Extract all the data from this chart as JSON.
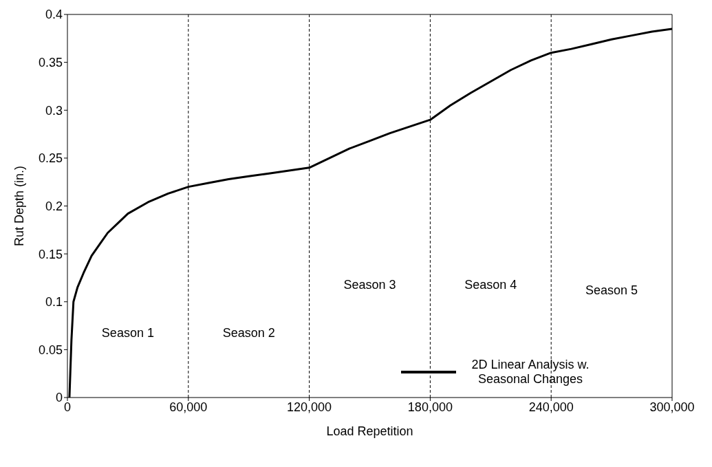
{
  "chart_data": {
    "type": "line",
    "xlabel": "Load Repetition",
    "ylabel": "Rut Depth (in.)",
    "x": [
      1000,
      2000,
      3000,
      5000,
      8000,
      12000,
      16000,
      20000,
      25000,
      30000,
      40000,
      50000,
      60000,
      70000,
      80000,
      90000,
      100000,
      110000,
      120000,
      130000,
      140000,
      150000,
      160000,
      170000,
      180000,
      190000,
      200000,
      210000,
      220000,
      230000,
      240000,
      250000,
      260000,
      270000,
      280000,
      290000,
      300000
    ],
    "series": [
      {
        "name": "2D Linear Analysis w. Seasonal Changes",
        "color": "#000000",
        "values": [
          0,
          0.06,
          0.1,
          0.115,
          0.13,
          0.148,
          0.16,
          0.172,
          0.182,
          0.192,
          0.204,
          0.213,
          0.22,
          0.224,
          0.228,
          0.231,
          0.234,
          0.237,
          0.24,
          0.25,
          0.26,
          0.268,
          0.276,
          0.283,
          0.29,
          0.305,
          0.318,
          0.33,
          0.342,
          0.352,
          0.36,
          0.364,
          0.369,
          0.374,
          0.378,
          0.382,
          0.385
        ]
      }
    ],
    "xlim": [
      0,
      300000
    ],
    "xticks": [
      0,
      {
        "value": 60000,
        "label": "60,000"
      },
      {
        "value": 120000,
        "label": "120,000"
      },
      {
        "value": 180000,
        "label": "180,000"
      },
      {
        "value": 240000,
        "label": "240,000"
      },
      {
        "value": 300000,
        "label": "300,000"
      }
    ],
    "ylim": [
      0,
      0.4
    ],
    "yticks": [
      0,
      0.05,
      0.1,
      0.15,
      0.2,
      0.25,
      0.3,
      0.35,
      0.4
    ],
    "ref_lines": [
      {
        "axis": "x",
        "value": 60000,
        "line_style": "dashed",
        "color": "#000000"
      },
      {
        "axis": "x",
        "value": 120000,
        "line_style": "dashed",
        "color": "#000000"
      },
      {
        "axis": "x",
        "value": 180000,
        "line_style": "dashed",
        "color": "#000000"
      },
      {
        "axis": "x",
        "value": 240000,
        "line_style": "dashed",
        "color": "#000000"
      }
    ],
    "annotations": [
      "Season 1",
      "Season 2",
      "Season 3",
      "Season 4",
      "Season 5"
    ],
    "legend": "bottom right",
    "grid": false,
    "marker": "none",
    "line_style": "solid"
  }
}
